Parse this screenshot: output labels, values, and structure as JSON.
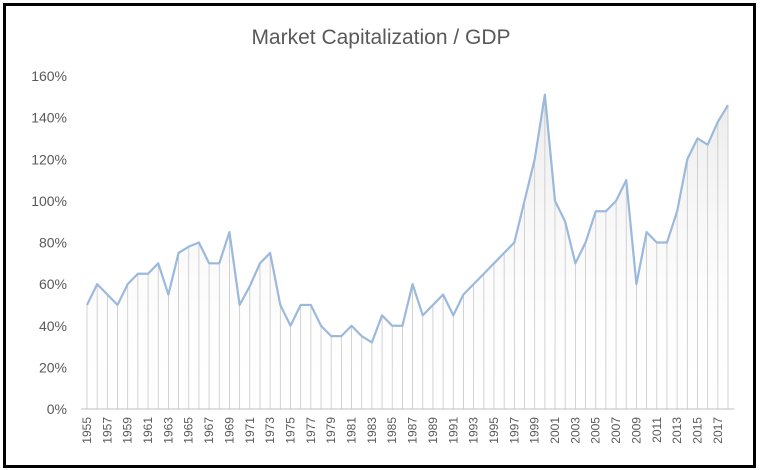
{
  "chart_data": {
    "type": "area",
    "title": "Market Capitalization / GDP",
    "xlabel": "",
    "ylabel": "",
    "ylim": [
      0,
      160
    ],
    "ytick_values": [
      0,
      20,
      40,
      60,
      80,
      100,
      120,
      140,
      160
    ],
    "ytick_labels": [
      "0%",
      "20%",
      "40%",
      "60%",
      "80%",
      "100%",
      "120%",
      "140%",
      "160%"
    ],
    "xtick_labels": [
      "1955",
      "1957",
      "1959",
      "1961",
      "1963",
      "1965",
      "1967",
      "1969",
      "1971",
      "1973",
      "1975",
      "1977",
      "1979",
      "1981",
      "1983",
      "1985",
      "1987",
      "1989",
      "1991",
      "1993",
      "1995",
      "1997",
      "1999",
      "2001",
      "2003",
      "2005",
      "2007",
      "2009",
      "2011",
      "2013",
      "2015",
      "2017"
    ],
    "x": [
      1955,
      1956,
      1957,
      1958,
      1959,
      1960,
      1961,
      1962,
      1963,
      1964,
      1965,
      1966,
      1967,
      1968,
      1969,
      1970,
      1971,
      1972,
      1973,
      1974,
      1975,
      1976,
      1977,
      1978,
      1979,
      1980,
      1981,
      1982,
      1983,
      1984,
      1985,
      1986,
      1987,
      1988,
      1989,
      1990,
      1991,
      1992,
      1993,
      1994,
      1995,
      1996,
      1997,
      1998,
      1999,
      2000,
      2001,
      2002,
      2003,
      2004,
      2005,
      2006,
      2007,
      2008,
      2009,
      2010,
      2011,
      2012,
      2013,
      2014,
      2015,
      2016,
      2017,
      2018
    ],
    "series": [
      {
        "name": "Market Capitalization / GDP",
        "values": [
          50,
          60,
          55,
          50,
          60,
          65,
          65,
          70,
          55,
          75,
          78,
          80,
          70,
          70,
          85,
          50,
          59,
          70,
          75,
          50,
          40,
          50,
          50,
          40,
          35,
          35,
          40,
          35,
          32,
          45,
          40,
          40,
          60,
          45,
          50,
          55,
          45,
          55,
          60,
          65,
          70,
          75,
          80,
          100,
          120,
          151,
          100,
          90,
          70,
          80,
          95,
          95,
          100,
          110,
          60,
          85,
          80,
          80,
          95,
          120,
          130,
          127,
          138,
          146
        ]
      }
    ],
    "colors": {
      "line": "#9bb9dc",
      "fill_top": "#e9e9e9",
      "drop_line": "#c8c8c8",
      "axis": "#bfbfbf"
    },
    "grid": false,
    "legend": "none"
  }
}
